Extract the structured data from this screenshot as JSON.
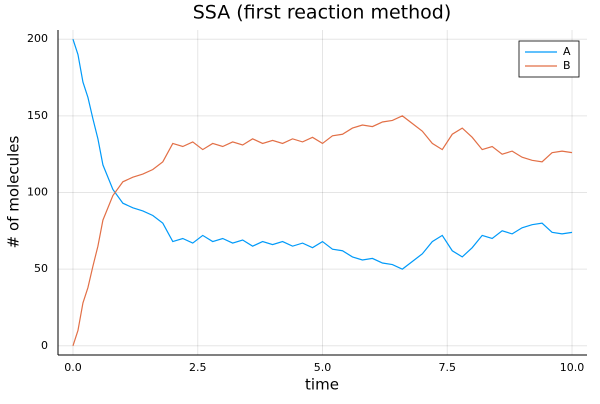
{
  "chart_data": {
    "type": "line",
    "title": "SSA (first reaction method)",
    "x_label": "time",
    "y_label": "# of molecules",
    "x": [
      0,
      0.1,
      0.2,
      0.3,
      0.4,
      0.5,
      0.6,
      0.8,
      1.0,
      1.2,
      1.4,
      1.6,
      1.8,
      2.0,
      2.2,
      2.4,
      2.6,
      2.8,
      3.0,
      3.2,
      3.4,
      3.6,
      3.8,
      4.0,
      4.2,
      4.4,
      4.6,
      4.8,
      5.0,
      5.2,
      5.4,
      5.6,
      5.8,
      6.0,
      6.2,
      6.4,
      6.6,
      6.8,
      7.0,
      7.2,
      7.4,
      7.6,
      7.8,
      8.0,
      8.2,
      8.4,
      8.6,
      8.8,
      9.0,
      9.2,
      9.4,
      9.6,
      9.8,
      10.0
    ],
    "series": [
      {
        "name": "A",
        "color": "#009af9",
        "values": [
          200,
          190,
          172,
          162,
          148,
          135,
          118,
          102,
          93,
          90,
          88,
          85,
          80,
          68,
          70,
          67,
          72,
          68,
          70,
          67,
          69,
          65,
          68,
          66,
          68,
          65,
          67,
          64,
          68,
          63,
          62,
          58,
          56,
          57,
          54,
          53,
          50,
          55,
          60,
          68,
          72,
          62,
          58,
          64,
          72,
          70,
          75,
          73,
          77,
          79,
          80,
          74,
          73,
          74
        ]
      },
      {
        "name": "B",
        "color": "#e26f46",
        "values": [
          0,
          10,
          28,
          38,
          52,
          65,
          82,
          98,
          107,
          110,
          112,
          115,
          120,
          132,
          130,
          133,
          128,
          132,
          130,
          133,
          131,
          135,
          132,
          134,
          132,
          135,
          133,
          136,
          132,
          137,
          138,
          142,
          144,
          143,
          146,
          147,
          150,
          145,
          140,
          132,
          128,
          138,
          142,
          136,
          128,
          130,
          125,
          127,
          123,
          121,
          120,
          126,
          127,
          126
        ]
      }
    ],
    "xlim": [
      -0.3,
      10.3
    ],
    "ylim": [
      -6,
      206
    ],
    "xticks": [
      {
        "value": 0,
        "label": "0.0"
      },
      2.5,
      {
        "value": 5,
        "label": "5.0"
      },
      7.5,
      {
        "value": 10,
        "label": "10.0"
      }
    ],
    "yticks": [
      0,
      50,
      100,
      150,
      200
    ],
    "grid": true,
    "legend": "top-right"
  }
}
